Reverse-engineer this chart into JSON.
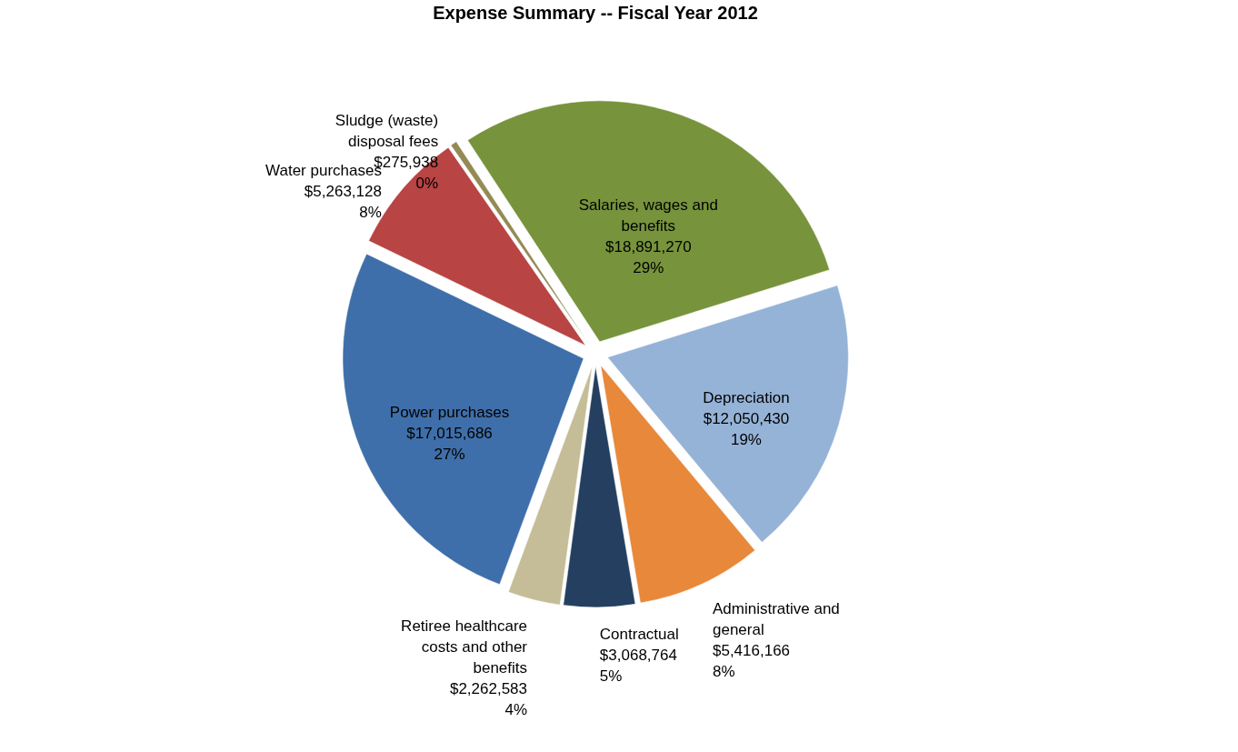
{
  "chart_data": {
    "type": "pie",
    "title": "Expense Summary -- Fiscal Year 2012",
    "categories": [
      "Salaries, wages and benefits",
      "Depreciation",
      "Administrative and general",
      "Contractual",
      "Retiree healthcare costs and other benefits",
      "Power purchases",
      "Water purchases",
      "Sludge (waste) disposal fees"
    ],
    "values": [
      18891270,
      12050430,
      5416166,
      3068764,
      2262583,
      17015686,
      5263128,
      275938
    ],
    "value_labels": [
      "$18,891,270\n29%",
      "$12,050,430\n19%",
      "$5,416,166\n8%",
      "$3,068,764\n5%",
      "$2,262,583\n4%",
      "$17,015,686\n27%",
      "$5,263,128\n8%",
      "$275,938\n0%"
    ],
    "colors": [
      "#77933c",
      "#95b3d7",
      "#e8883a",
      "#243f60",
      "#c4bd97",
      "#3f6faa",
      "#b84444",
      "#948a54"
    ],
    "legend": false
  }
}
